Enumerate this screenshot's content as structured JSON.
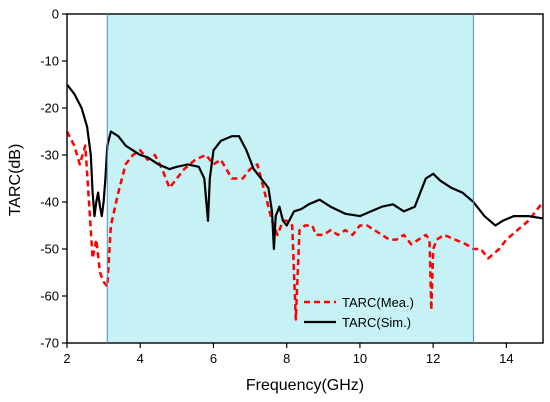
{
  "chart_data": {
    "type": "line",
    "title": "",
    "xlabel": "Frequency(GHz)",
    "ylabel": "TARC(dB)",
    "xlim": [
      2,
      15
    ],
    "ylim": [
      -70,
      0
    ],
    "x_ticks": [
      2,
      4,
      6,
      8,
      10,
      12,
      14
    ],
    "y_ticks": [
      0,
      -10,
      -20,
      -30,
      -40,
      -50,
      -60,
      -70
    ],
    "x_tick_labels": [
      "2",
      "4",
      "6",
      "8",
      "10",
      "12",
      "14"
    ],
    "y_tick_labels": [
      "0",
      "-10",
      "-20",
      "-30",
      "-40",
      "-50",
      "-60",
      "-70"
    ],
    "grid": false,
    "legend_position": "bottom-right",
    "highlight_band": {
      "x_start": 3.1,
      "x_end": 13.1,
      "color": "#c6f2f5"
    },
    "series": [
      {
        "name": "TARC(Mea.)",
        "color": "#ff0000",
        "style": "dashed",
        "points": [
          [
            2.0,
            -25
          ],
          [
            2.2,
            -28
          ],
          [
            2.35,
            -32
          ],
          [
            2.5,
            -28
          ],
          [
            2.6,
            -40
          ],
          [
            2.7,
            -52
          ],
          [
            2.8,
            -48
          ],
          [
            2.9,
            -55
          ],
          [
            3.0,
            -57
          ],
          [
            3.1,
            -58
          ],
          [
            3.2,
            -45
          ],
          [
            3.4,
            -38
          ],
          [
            3.6,
            -32
          ],
          [
            3.8,
            -30
          ],
          [
            4.0,
            -29
          ],
          [
            4.2,
            -31
          ],
          [
            4.4,
            -30
          ],
          [
            4.6,
            -33
          ],
          [
            4.8,
            -37
          ],
          [
            5.0,
            -35
          ],
          [
            5.2,
            -33
          ],
          [
            5.5,
            -31
          ],
          [
            5.8,
            -30
          ],
          [
            6.0,
            -32
          ],
          [
            6.2,
            -31
          ],
          [
            6.5,
            -35
          ],
          [
            6.8,
            -35
          ],
          [
            7.0,
            -33
          ],
          [
            7.2,
            -32
          ],
          [
            7.4,
            -38
          ],
          [
            7.6,
            -44
          ],
          [
            7.75,
            -47
          ],
          [
            7.9,
            -44
          ],
          [
            8.0,
            -44
          ],
          [
            8.15,
            -45
          ],
          [
            8.25,
            -65
          ],
          [
            8.35,
            -46
          ],
          [
            8.5,
            -45
          ],
          [
            8.7,
            -45
          ],
          [
            8.8,
            -47
          ],
          [
            9.0,
            -47
          ],
          [
            9.2,
            -46
          ],
          [
            9.4,
            -47
          ],
          [
            9.6,
            -46
          ],
          [
            9.8,
            -47
          ],
          [
            10.0,
            -45
          ],
          [
            10.2,
            -45
          ],
          [
            10.4,
            -46
          ],
          [
            10.6,
            -47
          ],
          [
            10.8,
            -48
          ],
          [
            11.0,
            -48
          ],
          [
            11.2,
            -47
          ],
          [
            11.4,
            -49
          ],
          [
            11.6,
            -48
          ],
          [
            11.8,
            -47
          ],
          [
            11.9,
            -48
          ],
          [
            11.95,
            -63
          ],
          [
            12.0,
            -50
          ],
          [
            12.1,
            -48
          ],
          [
            12.3,
            -47
          ],
          [
            12.6,
            -48
          ],
          [
            12.9,
            -49
          ],
          [
            13.1,
            -50
          ],
          [
            13.3,
            -50
          ],
          [
            13.5,
            -52
          ],
          [
            13.65,
            -51
          ],
          [
            13.8,
            -50
          ],
          [
            14.0,
            -48
          ],
          [
            14.3,
            -46
          ],
          [
            14.6,
            -44
          ],
          [
            14.9,
            -41
          ],
          [
            15.0,
            -40
          ]
        ]
      },
      {
        "name": "TARC(Sim.)",
        "color": "#000000",
        "style": "solid",
        "points": [
          [
            2.0,
            -15
          ],
          [
            2.2,
            -17
          ],
          [
            2.4,
            -20
          ],
          [
            2.55,
            -24
          ],
          [
            2.65,
            -30
          ],
          [
            2.7,
            -38
          ],
          [
            2.75,
            -43
          ],
          [
            2.8,
            -40
          ],
          [
            2.85,
            -38
          ],
          [
            2.9,
            -41
          ],
          [
            2.95,
            -43
          ],
          [
            3.0,
            -40
          ],
          [
            3.05,
            -35
          ],
          [
            3.1,
            -28
          ],
          [
            3.2,
            -25
          ],
          [
            3.4,
            -26
          ],
          [
            3.6,
            -28
          ],
          [
            3.8,
            -29
          ],
          [
            4.0,
            -30
          ],
          [
            4.2,
            -30.5
          ],
          [
            4.5,
            -32
          ],
          [
            4.8,
            -33
          ],
          [
            5.0,
            -32.5
          ],
          [
            5.3,
            -32
          ],
          [
            5.6,
            -32.5
          ],
          [
            5.75,
            -35
          ],
          [
            5.85,
            -44
          ],
          [
            5.9,
            -35
          ],
          [
            6.0,
            -29
          ],
          [
            6.2,
            -27
          ],
          [
            6.5,
            -26
          ],
          [
            6.7,
            -26
          ],
          [
            6.9,
            -29
          ],
          [
            7.1,
            -33
          ],
          [
            7.3,
            -35
          ],
          [
            7.5,
            -37
          ],
          [
            7.6,
            -42
          ],
          [
            7.65,
            -50
          ],
          [
            7.7,
            -43
          ],
          [
            7.8,
            -41
          ],
          [
            7.9,
            -44
          ],
          [
            8.0,
            -45
          ],
          [
            8.2,
            -42
          ],
          [
            8.4,
            -41.5
          ],
          [
            8.6,
            -40.5
          ],
          [
            8.9,
            -39.5
          ],
          [
            9.2,
            -41
          ],
          [
            9.6,
            -42.5
          ],
          [
            10.0,
            -43
          ],
          [
            10.3,
            -42
          ],
          [
            10.6,
            -41
          ],
          [
            10.9,
            -40.5
          ],
          [
            11.2,
            -42
          ],
          [
            11.5,
            -41
          ],
          [
            11.8,
            -35
          ],
          [
            12.0,
            -34
          ],
          [
            12.2,
            -35.5
          ],
          [
            12.5,
            -37
          ],
          [
            12.8,
            -38
          ],
          [
            13.1,
            -40
          ],
          [
            13.4,
            -43
          ],
          [
            13.7,
            -45
          ],
          [
            13.9,
            -44
          ],
          [
            14.2,
            -43
          ],
          [
            14.6,
            -43
          ],
          [
            15.0,
            -43.5
          ]
        ]
      }
    ]
  }
}
